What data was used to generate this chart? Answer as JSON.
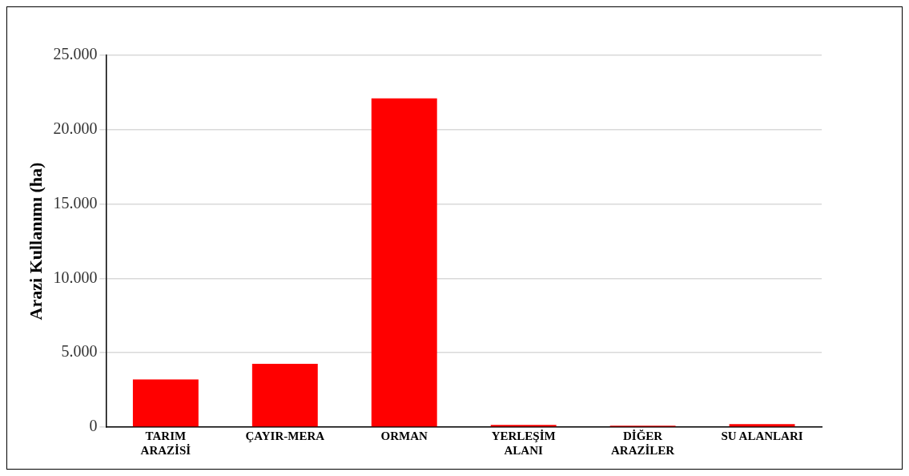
{
  "chart_data": {
    "type": "bar",
    "ylabel": "Arazi Kullanımı (ha)",
    "categories": [
      "TARIM\nARAZİSİ",
      "ÇAYIR-MERA",
      "ORMAN",
      "YERLEŞİM\nALANI",
      "DİĞER\nARAZİLER",
      "SU ALANLARI"
    ],
    "values": [
      3200,
      4250,
      22100,
      150,
      100,
      200
    ],
    "color": "#ff0000",
    "ylim": [
      0,
      25000
    ],
    "yticks": [
      {
        "value": 0,
        "label": "0"
      },
      {
        "value": 5000,
        "label": "5.000"
      },
      {
        "value": 10000,
        "label": "10.000"
      },
      {
        "value": 15000,
        "label": "15.000"
      },
      {
        "value": 20000,
        "label": "20.000"
      },
      {
        "value": 25000,
        "label": "25.000"
      }
    ],
    "grid": "y",
    "legend": false
  }
}
